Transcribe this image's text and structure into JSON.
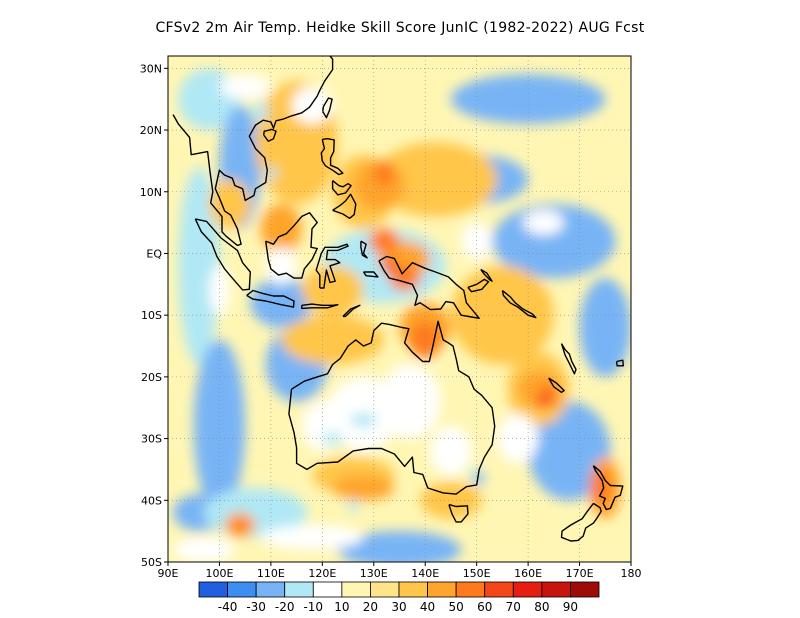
{
  "title": "CFSv2  2m Air Temp. Heidke Skill Score JunIC (1982-2022) AUG Fcst",
  "map": {
    "lon_range": [
      90,
      180
    ],
    "lat_range": [
      -50,
      32
    ],
    "lon_ticks": [
      {
        "value": 90,
        "label": "90E"
      },
      {
        "value": 100,
        "label": "100E"
      },
      {
        "value": 110,
        "label": "110E"
      },
      {
        "value": 120,
        "label": "120E"
      },
      {
        "value": 130,
        "label": "130E"
      },
      {
        "value": 140,
        "label": "140E"
      },
      {
        "value": 150,
        "label": "150E"
      },
      {
        "value": 160,
        "label": "160E"
      },
      {
        "value": 170,
        "label": "170E"
      },
      {
        "value": 180,
        "label": "180"
      }
    ],
    "lat_ticks": [
      {
        "value": 30,
        "label": "30N"
      },
      {
        "value": 20,
        "label": "20N"
      },
      {
        "value": 10,
        "label": "10N"
      },
      {
        "value": 0,
        "label": "EQ"
      },
      {
        "value": -10,
        "label": "10S"
      },
      {
        "value": -20,
        "label": "20S"
      },
      {
        "value": -30,
        "label": "30S"
      },
      {
        "value": -40,
        "label": "40S"
      },
      {
        "value": -50,
        "label": "50S"
      }
    ]
  },
  "colorbar": {
    "colors": [
      "#1f5fe0",
      "#3c8ef0",
      "#78b4f5",
      "#b0e8f5",
      "#ffffff",
      "#fff6b4",
      "#ffe48a",
      "#ffc64a",
      "#ffa42c",
      "#ff7a1a",
      "#f5461a",
      "#e61e12",
      "#c8140e",
      "#9e0c08"
    ],
    "labels": [
      "-40",
      "-30",
      "-20",
      "-10",
      "10",
      "20",
      "30",
      "40",
      "50",
      "60",
      "70",
      "80",
      "90"
    ]
  }
}
